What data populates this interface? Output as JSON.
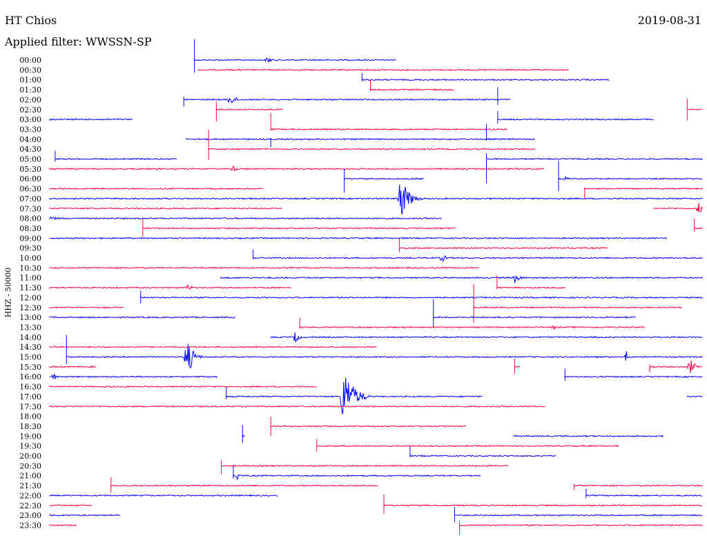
{
  "header": {
    "station": "HT Chios",
    "date": "2019-08-31",
    "filter_label": "Applied filter: WWSSN-SP"
  },
  "chart_data": {
    "type": "line",
    "title": "HT Chios",
    "date": "2019-08-31",
    "subtitle": "Applied filter: WWSSN-SP",
    "ylabel": "HHZ - 50000",
    "colors": [
      "#0000ff",
      "#ff0040"
    ],
    "rows": [
      {
        "time": "00:00",
        "color": "#0000ff",
        "segs": [
          [
            0.275,
            0.56
          ]
        ],
        "events": [
          {
            "x": 0.378,
            "amp": 5,
            "dur": 0.018
          }
        ],
        "spikes": [
          {
            "x": 0.275,
            "up": 30,
            "down": 18
          }
        ]
      },
      {
        "time": "00:30",
        "color": "#ff0040",
        "segs": [
          [
            0.28,
            0.805
          ]
        ],
        "events": [],
        "spikes": []
      },
      {
        "time": "01:00",
        "color": "#0000ff",
        "segs": [
          [
            0.512,
            0.862
          ]
        ],
        "events": [],
        "spikes": [
          {
            "x": 0.512,
            "up": 10,
            "down": 2
          }
        ]
      },
      {
        "time": "01:30",
        "color": "#ff0040",
        "segs": [
          [
            0.524,
            0.643
          ]
        ],
        "events": [],
        "spikes": [
          {
            "x": 0.524,
            "up": 14,
            "down": 2
          }
        ]
      },
      {
        "time": "02:00",
        "color": "#0000ff",
        "segs": [
          [
            0.26,
            0.722
          ]
        ],
        "events": [
          {
            "x": 0.325,
            "amp": 8,
            "dur": 0.025
          }
        ],
        "spikes": [
          {
            "x": 0.26,
            "up": 4,
            "down": 10
          },
          {
            "x": 0.704,
            "up": 18,
            "down": 8
          }
        ]
      },
      {
        "time": "02:30",
        "color": "#ff0040",
        "segs": [
          [
            0.306,
            0.4
          ],
          [
            0.972,
            0.994
          ]
        ],
        "events": [],
        "spikes": [
          {
            "x": 0.306,
            "up": 12,
            "down": 18
          },
          {
            "x": 0.972,
            "up": 16,
            "down": 16
          }
        ]
      },
      {
        "time": "03:00",
        "color": "#0000ff",
        "segs": [
          [
            0.07,
            0.188
          ],
          [
            0.704,
            0.925
          ]
        ],
        "events": [],
        "spikes": [
          {
            "x": 0.704,
            "up": 12,
            "down": 6
          }
        ]
      },
      {
        "time": "03:30",
        "color": "#ff0040",
        "segs": [
          [
            0.383,
            0.717
          ]
        ],
        "events": [],
        "spikes": [
          {
            "x": 0.383,
            "up": 24,
            "down": 2
          }
        ]
      },
      {
        "time": "04:00",
        "color": "#0000ff",
        "segs": [
          [
            0.263,
            0.757
          ]
        ],
        "events": [],
        "spikes": [
          {
            "x": 0.383,
            "up": 2,
            "down": 12
          },
          {
            "x": 0.688,
            "up": 22,
            "down": 2
          }
        ]
      },
      {
        "time": "04:30",
        "color": "#ff0040",
        "segs": [
          [
            0.295,
            0.757
          ]
        ],
        "events": [],
        "spikes": [
          {
            "x": 0.295,
            "up": 28,
            "down": 16
          }
        ]
      },
      {
        "time": "05:00",
        "color": "#0000ff",
        "segs": [
          [
            0.078,
            0.25
          ],
          [
            0.688,
            0.994
          ]
        ],
        "events": [],
        "spikes": [
          {
            "x": 0.078,
            "up": 12,
            "down": 4
          },
          {
            "x": 0.688,
            "up": 8,
            "down": 35
          }
        ]
      },
      {
        "time": "05:30",
        "color": "#ff0040",
        "segs": [
          [
            0.07,
            0.77
          ]
        ],
        "events": [
          {
            "x": 0.33,
            "amp": 9,
            "dur": 0.012
          }
        ],
        "spikes": []
      },
      {
        "time": "06:00",
        "color": "#0000ff",
        "segs": [
          [
            0.487,
            0.6
          ],
          [
            0.79,
            0.994
          ]
        ],
        "events": [
          {
            "x": 0.8,
            "amp": 4,
            "dur": 0.012
          }
        ],
        "spikes": [
          {
            "x": 0.487,
            "up": 14,
            "down": 20
          },
          {
            "x": 0.79,
            "up": 26,
            "down": 18
          }
        ]
      },
      {
        "time": "06:30",
        "color": "#ff0040",
        "segs": [
          [
            0.07,
            0.372
          ],
          [
            0.827,
            0.994
          ]
        ],
        "events": [],
        "spikes": [
          {
            "x": 0.827,
            "up": 2,
            "down": 14
          }
        ]
      },
      {
        "time": "07:00",
        "color": "#0000ff",
        "segs": [
          [
            0.07,
            0.994
          ]
        ],
        "events": [
          {
            "x": 0.566,
            "amp": 34,
            "dur": 0.03
          }
        ],
        "spikes": []
      },
      {
        "time": "07:30",
        "color": "#ff0040",
        "segs": [
          [
            0.07,
            0.4
          ],
          [
            0.925,
            0.994
          ]
        ],
        "events": [
          {
            "x": 0.988,
            "amp": 10,
            "dur": 0.012
          }
        ],
        "spikes": []
      },
      {
        "time": "08:00",
        "color": "#0000ff",
        "segs": [
          [
            0.07,
            0.625
          ]
        ],
        "events": [
          {
            "x": 0.074,
            "amp": 6,
            "dur": 0.01
          }
        ],
        "spikes": []
      },
      {
        "time": "08:30",
        "color": "#ff0040",
        "segs": [
          [
            0.202,
            0.645
          ],
          [
            0.982,
            0.994
          ]
        ],
        "events": [],
        "spikes": [
          {
            "x": 0.202,
            "up": 14,
            "down": 12
          },
          {
            "x": 0.982,
            "up": 14,
            "down": 4
          }
        ]
      },
      {
        "time": "09:00",
        "color": "#0000ff",
        "segs": [
          [
            0.07,
            0.944
          ]
        ],
        "events": [],
        "spikes": []
      },
      {
        "time": "09:30",
        "color": "#ff0040",
        "segs": [
          [
            0.565,
            0.86
          ]
        ],
        "events": [],
        "spikes": [
          {
            "x": 0.565,
            "up": 14,
            "down": 6
          }
        ]
      },
      {
        "time": "10:00",
        "color": "#0000ff",
        "segs": [
          [
            0.358,
            0.994
          ]
        ],
        "events": [
          {
            "x": 0.625,
            "amp": 6,
            "dur": 0.02
          }
        ],
        "spikes": [
          {
            "x": 0.358,
            "up": 12,
            "down": 2
          }
        ]
      },
      {
        "time": "10:30",
        "color": "#ff0040",
        "segs": [
          [
            0.07,
            0.678
          ]
        ],
        "events": [],
        "spikes": []
      },
      {
        "time": "11:00",
        "color": "#0000ff",
        "segs": [
          [
            0.312,
            0.994
          ]
        ],
        "events": [
          {
            "x": 0.728,
            "amp": 7,
            "dur": 0.025
          }
        ],
        "spikes": []
      },
      {
        "time": "11:30",
        "color": "#ff0040",
        "segs": [
          [
            0.07,
            0.412
          ],
          [
            0.703,
            0.8
          ]
        ],
        "events": [
          {
            "x": 0.265,
            "amp": 6,
            "dur": 0.015
          }
        ],
        "spikes": [
          {
            "x": 0.703,
            "up": 18,
            "down": 2
          }
        ]
      },
      {
        "time": "12:00",
        "color": "#0000ff",
        "segs": [
          [
            0.199,
            0.994
          ]
        ],
        "events": [],
        "spikes": [
          {
            "x": 0.199,
            "up": 10,
            "down": 8
          }
        ]
      },
      {
        "time": "12:30",
        "color": "#ff0040",
        "segs": [
          [
            0.07,
            0.175
          ],
          [
            0.67,
            0.965
          ]
        ],
        "events": [],
        "spikes": [
          {
            "x": 0.67,
            "up": 34,
            "down": 22
          }
        ]
      },
      {
        "time": "13:00",
        "color": "#0000ff",
        "segs": [
          [
            0.07,
            0.333
          ],
          [
            0.613,
            0.9
          ]
        ],
        "events": [],
        "spikes": [
          {
            "x": 0.613,
            "up": 26,
            "down": 14
          }
        ]
      },
      {
        "time": "13:30",
        "color": "#ff0040",
        "segs": [
          [
            0.424,
            0.913
          ]
        ],
        "events": [
          {
            "x": 0.783,
            "amp": 4,
            "dur": 0.01
          }
        ],
        "spikes": [
          {
            "x": 0.424,
            "up": 14,
            "down": 2
          }
        ]
      },
      {
        "time": "14:00",
        "color": "#0000ff",
        "segs": [
          [
            0.383,
            0.994
          ]
        ],
        "events": [
          {
            "x": 0.418,
            "amp": 10,
            "dur": 0.012
          }
        ],
        "spikes": []
      },
      {
        "time": "14:30",
        "color": "#ff0040",
        "segs": [
          [
            0.07,
            0.533
          ]
        ],
        "events": [],
        "spikes": []
      },
      {
        "time": "15:00",
        "color": "#0000ff",
        "segs": [
          [
            0.094,
            0.994
          ]
        ],
        "events": [
          {
            "x": 0.264,
            "amp": 32,
            "dur": 0.022
          },
          {
            "x": 0.886,
            "amp": 9,
            "dur": 0.01
          }
        ],
        "spikes": [
          {
            "x": 0.094,
            "up": 32,
            "down": 10
          }
        ]
      },
      {
        "time": "15:30",
        "color": "#ff0040",
        "segs": [
          [
            0.07,
            0.136
          ],
          [
            0.728,
            0.736
          ],
          [
            0.919,
            0.994
          ]
        ],
        "events": [
          {
            "x": 0.976,
            "amp": 12,
            "dur": 0.018
          }
        ],
        "spikes": [
          {
            "x": 0.728,
            "up": 12,
            "down": 10
          },
          {
            "x": 0.919,
            "up": 4,
            "down": 8
          }
        ]
      },
      {
        "time": "16:00",
        "color": "#0000ff",
        "segs": [
          [
            0.07,
            0.308
          ],
          [
            0.799,
            0.994
          ]
        ],
        "events": [
          {
            "x": 0.076,
            "amp": 6,
            "dur": 0.012
          }
        ],
        "spikes": [
          {
            "x": 0.799,
            "up": 12,
            "down": 6
          }
        ]
      },
      {
        "time": "16:30",
        "color": "#ff0040",
        "segs": [
          [
            0.07,
            0.448
          ]
        ],
        "events": [],
        "spikes": []
      },
      {
        "time": "17:00",
        "color": "#0000ff",
        "segs": [
          [
            0.32,
            0.683
          ],
          [
            0.972,
            0.994
          ]
        ],
        "events": [
          {
            "x": 0.485,
            "amp": 45,
            "dur": 0.038
          }
        ],
        "spikes": [
          {
            "x": 0.32,
            "up": 14,
            "down": 4
          }
        ]
      },
      {
        "time": "17:30",
        "color": "#ff0040",
        "segs": [
          [
            0.07,
            0.772
          ]
        ],
        "events": [],
        "spikes": []
      },
      {
        "time": "18:00",
        "color": "#0000ff",
        "segs": [],
        "events": [],
        "spikes": []
      },
      {
        "time": "18:30",
        "color": "#ff0040",
        "segs": [
          [
            0.383,
            0.66
          ]
        ],
        "events": [],
        "spikes": [
          {
            "x": 0.383,
            "up": 14,
            "down": 14
          }
        ]
      },
      {
        "time": "19:00",
        "color": "#0000ff",
        "segs": [
          [
            0.343,
            0.346
          ],
          [
            0.726,
            0.938
          ]
        ],
        "events": [],
        "spikes": [
          {
            "x": 0.343,
            "up": 16,
            "down": 10
          }
        ]
      },
      {
        "time": "19:30",
        "color": "#ff0040",
        "segs": [
          [
            0.448,
            0.875
          ]
        ],
        "events": [],
        "spikes": [
          {
            "x": 0.448,
            "up": 10,
            "down": 8
          }
        ]
      },
      {
        "time": "20:00",
        "color": "#0000ff",
        "segs": [
          [
            0.58,
            0.787
          ]
        ],
        "events": [],
        "spikes": [
          {
            "x": 0.58,
            "up": 14,
            "down": 2
          }
        ]
      },
      {
        "time": "20:30",
        "color": "#ff0040",
        "segs": [
          [
            0.313,
            0.72
          ]
        ],
        "events": [],
        "spikes": [
          {
            "x": 0.313,
            "up": 8,
            "down": 12
          }
        ]
      },
      {
        "time": "21:00",
        "color": "#0000ff",
        "segs": [
          [
            0.33,
            0.68
          ]
        ],
        "events": [
          {
            "x": 0.336,
            "amp": 8,
            "dur": 0.01
          }
        ],
        "spikes": [
          {
            "x": 0.33,
            "up": 14,
            "down": 4
          }
        ]
      },
      {
        "time": "21:30",
        "color": "#ff0040",
        "segs": [
          [
            0.157,
            0.535
          ],
          [
            0.812,
            0.994
          ]
        ],
        "events": [],
        "spikes": [
          {
            "x": 0.157,
            "up": 12,
            "down": 10
          },
          {
            "x": 0.812,
            "up": 2,
            "down": 6
          }
        ]
      },
      {
        "time": "22:00",
        "color": "#0000ff",
        "segs": [
          [
            0.07,
            0.394
          ],
          [
            0.829,
            0.994
          ]
        ],
        "events": [],
        "spikes": [
          {
            "x": 0.829,
            "up": 10,
            "down": 4
          }
        ]
      },
      {
        "time": "22:30",
        "color": "#ff0040",
        "segs": [
          [
            0.07,
            0.13
          ],
          [
            0.543,
            0.994
          ]
        ],
        "events": [],
        "spikes": [
          {
            "x": 0.543,
            "up": 16,
            "down": 12
          }
        ]
      },
      {
        "time": "23:00",
        "color": "#0000ff",
        "segs": [
          [
            0.07,
            0.17
          ],
          [
            0.643,
            0.994
          ]
        ],
        "events": [],
        "spikes": [
          {
            "x": 0.643,
            "up": 12,
            "down": 10
          }
        ]
      },
      {
        "time": "23:30",
        "color": "#ff0040",
        "segs": [
          [
            0.07,
            0.109
          ],
          [
            0.65,
            0.994
          ]
        ],
        "events": [],
        "spikes": [
          {
            "x": 0.65,
            "up": 6,
            "down": 14
          }
        ]
      }
    ]
  }
}
